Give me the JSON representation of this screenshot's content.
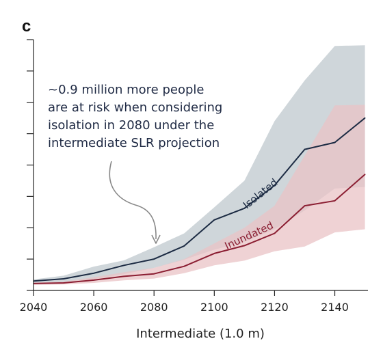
{
  "panel_label": "c",
  "colors": {
    "isolated_line": "#1c2b43",
    "isolated_band": "#cfd6da",
    "inundated_line": "#8b1e32",
    "inundated_band": "#e9c3c5",
    "overlap_band": "#cba9ae",
    "axis": "#222222",
    "arrow": "#888888"
  },
  "annotation": {
    "lines": [
      "~0.9 million more people",
      "are at risk when considering",
      "isolation in 2080 under the",
      "intermediate SLR projection"
    ]
  },
  "chart_data": {
    "type": "line",
    "xlabel": "Intermediate (1.0 m)",
    "ylabel": "",
    "x_ticks": [
      2040,
      2060,
      2080,
      2100,
      2120,
      2140
    ],
    "xlim": [
      2040,
      2151
    ],
    "ylim": [
      0,
      8
    ],
    "y_tick_count": 9,
    "x": [
      2040,
      2050,
      2060,
      2070,
      2080,
      2090,
      2100,
      2110,
      2120,
      2130,
      2140,
      2150
    ],
    "series": [
      {
        "name": "Isolated",
        "values": [
          0.3,
          0.37,
          0.55,
          0.8,
          1.0,
          1.42,
          2.25,
          2.62,
          3.35,
          4.5,
          4.72,
          5.5
        ],
        "lower": [
          0.2,
          0.25,
          0.36,
          0.52,
          0.72,
          0.98,
          1.3,
          1.55,
          1.95,
          2.55,
          3.25,
          3.3
        ],
        "upper": [
          0.35,
          0.47,
          0.76,
          0.96,
          1.38,
          1.82,
          2.65,
          3.5,
          5.4,
          6.7,
          7.8,
          7.82
        ]
      },
      {
        "name": "Inundated",
        "values": [
          0.22,
          0.24,
          0.33,
          0.45,
          0.53,
          0.77,
          1.18,
          1.43,
          1.82,
          2.7,
          2.86,
          3.7
        ],
        "lower": [
          0.18,
          0.19,
          0.24,
          0.32,
          0.38,
          0.55,
          0.8,
          0.95,
          1.25,
          1.4,
          1.85,
          1.95
        ],
        "upper": [
          0.25,
          0.28,
          0.42,
          0.58,
          0.72,
          1.0,
          1.5,
          2.0,
          2.7,
          4.3,
          5.9,
          5.92
        ]
      }
    ]
  }
}
